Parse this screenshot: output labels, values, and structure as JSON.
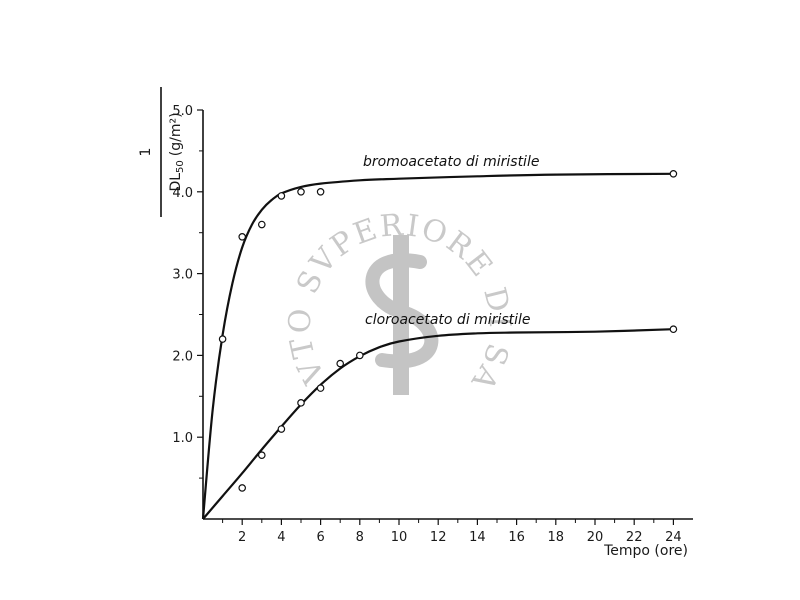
{
  "chart_data": {
    "type": "line",
    "x_axis": {
      "label": "Tempo (ore)",
      "range": [
        0,
        25
      ],
      "ticks": [
        2,
        4,
        6,
        8,
        10,
        12,
        14,
        16,
        18,
        20,
        22,
        24
      ]
    },
    "y_axis": {
      "label_numerator": "1",
      "label_denominator_main": "DL",
      "label_denominator_subscript": "50",
      "label_denominator_unit": "(g/m²)",
      "range": [
        0,
        5.0
      ],
      "ticks": [
        1.0,
        2.0,
        3.0,
        4.0,
        5.0
      ],
      "tick_labels": [
        "1.0",
        "2.0",
        "3.0",
        "4.0",
        "5.0"
      ]
    },
    "grid": false,
    "series": [
      {
        "name": "bromoacetato di miristile",
        "points": [
          [
            1,
            2.2
          ],
          [
            2,
            3.45
          ],
          [
            3,
            3.6
          ],
          [
            4,
            3.95
          ],
          [
            5,
            4.0
          ],
          [
            6,
            4.0
          ],
          [
            24,
            4.22
          ]
        ],
        "curve": [
          [
            0,
            0
          ],
          [
            0.5,
            1.35
          ],
          [
            1,
            2.25
          ],
          [
            1.5,
            2.88
          ],
          [
            2,
            3.32
          ],
          [
            2.5,
            3.6
          ],
          [
            3,
            3.78
          ],
          [
            3.5,
            3.9
          ],
          [
            4,
            3.98
          ],
          [
            5,
            4.06
          ],
          [
            6,
            4.1
          ],
          [
            8,
            4.14
          ],
          [
            10,
            4.16
          ],
          [
            14,
            4.19
          ],
          [
            18,
            4.21
          ],
          [
            24,
            4.22
          ]
        ]
      },
      {
        "name": "cloroacetato di miristile",
        "points": [
          [
            2,
            0.38
          ],
          [
            3,
            0.78
          ],
          [
            4,
            1.1
          ],
          [
            5,
            1.42
          ],
          [
            6,
            1.6
          ],
          [
            7,
            1.9
          ],
          [
            8,
            2.0
          ],
          [
            24,
            2.32
          ]
        ],
        "curve": [
          [
            0,
            0
          ],
          [
            1,
            0.28
          ],
          [
            2,
            0.56
          ],
          [
            3,
            0.85
          ],
          [
            4,
            1.13
          ],
          [
            5,
            1.4
          ],
          [
            6,
            1.64
          ],
          [
            7,
            1.84
          ],
          [
            8,
            1.99
          ],
          [
            9,
            2.1
          ],
          [
            10,
            2.17
          ],
          [
            12,
            2.24
          ],
          [
            14,
            2.27
          ],
          [
            16,
            2.28
          ],
          [
            20,
            2.29
          ],
          [
            24,
            2.32
          ]
        ]
      }
    ]
  },
  "watermark": {
    "text": "ISTITVTO SVPERIORE DI SANITA",
    "color": "#c9c9c9"
  }
}
